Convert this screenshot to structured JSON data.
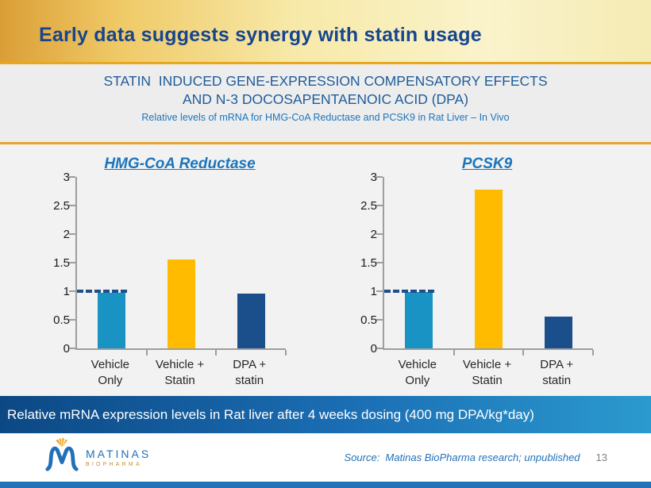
{
  "slide": {
    "title": "Early data suggests synergy with statin usage",
    "header": {
      "line1": "STATIN  INDUCED GENE-EXPRESSION COMPENSATORY EFFECTS",
      "line2": "AND N-3 DOCOSAPENTAENOIC ACID (DPA)",
      "subtitle": "Relative levels of mRNA for HMG-CoA Reductase and PCSK9 in Rat Liver – In Vivo"
    },
    "banner_text": "Relative mRNA expression levels in Rat liver after 4 weeks dosing (400 mg DPA/kg*day)",
    "footer": {
      "logo_text": "MATINAS",
      "logo_subtext": "BIOPHARMA",
      "source_text": "Source:  Matinas BioPharma research; unpublished",
      "page_number": "13"
    },
    "colors": {
      "title_blue": "#17458E",
      "header_blue": "#1F5C99",
      "accent_blue": "#1B75BC",
      "gold_line": "#E2A62C",
      "banner_gradient_left": "#0C4884",
      "banner_gradient_right": "#2B9ACE",
      "bottom_bar_blue": "#1E73B9",
      "bar_light_blue": "#1993C4",
      "bar_yellow": "#FFBB00",
      "bar_dark_blue": "#1A4F8C",
      "reference_line_navy": "#1D4F8C"
    }
  },
  "chart_data": [
    {
      "type": "bar",
      "title": "HMG-CoA Reductase",
      "categories": [
        "Vehicle\nOnly",
        "Vehicle +\nStatin",
        "DPA +\nstatin"
      ],
      "values": [
        0.98,
        1.56,
        0.96
      ],
      "bar_colors": [
        "#1993C4",
        "#FFBB00",
        "#1A4F8C"
      ],
      "ylim": [
        0,
        3
      ],
      "yticks": [
        0,
        0.5,
        1,
        1.5,
        2,
        2.5,
        3
      ],
      "reference_line_y": 1.0,
      "xlabel": "",
      "ylabel": "",
      "grid": false,
      "legend": false
    },
    {
      "type": "bar",
      "title": "PCSK9",
      "categories": [
        "Vehicle\nOnly",
        "Vehicle +\nStatin",
        "DPA +\nstatin"
      ],
      "values": [
        0.99,
        2.78,
        0.56
      ],
      "bar_colors": [
        "#1993C4",
        "#FFBB00",
        "#1A4F8C"
      ],
      "ylim": [
        0,
        3
      ],
      "yticks": [
        0,
        0.5,
        1,
        1.5,
        2,
        2.5,
        3
      ],
      "reference_line_y": 1.0,
      "xlabel": "",
      "ylabel": "",
      "grid": false,
      "legend": false
    }
  ]
}
